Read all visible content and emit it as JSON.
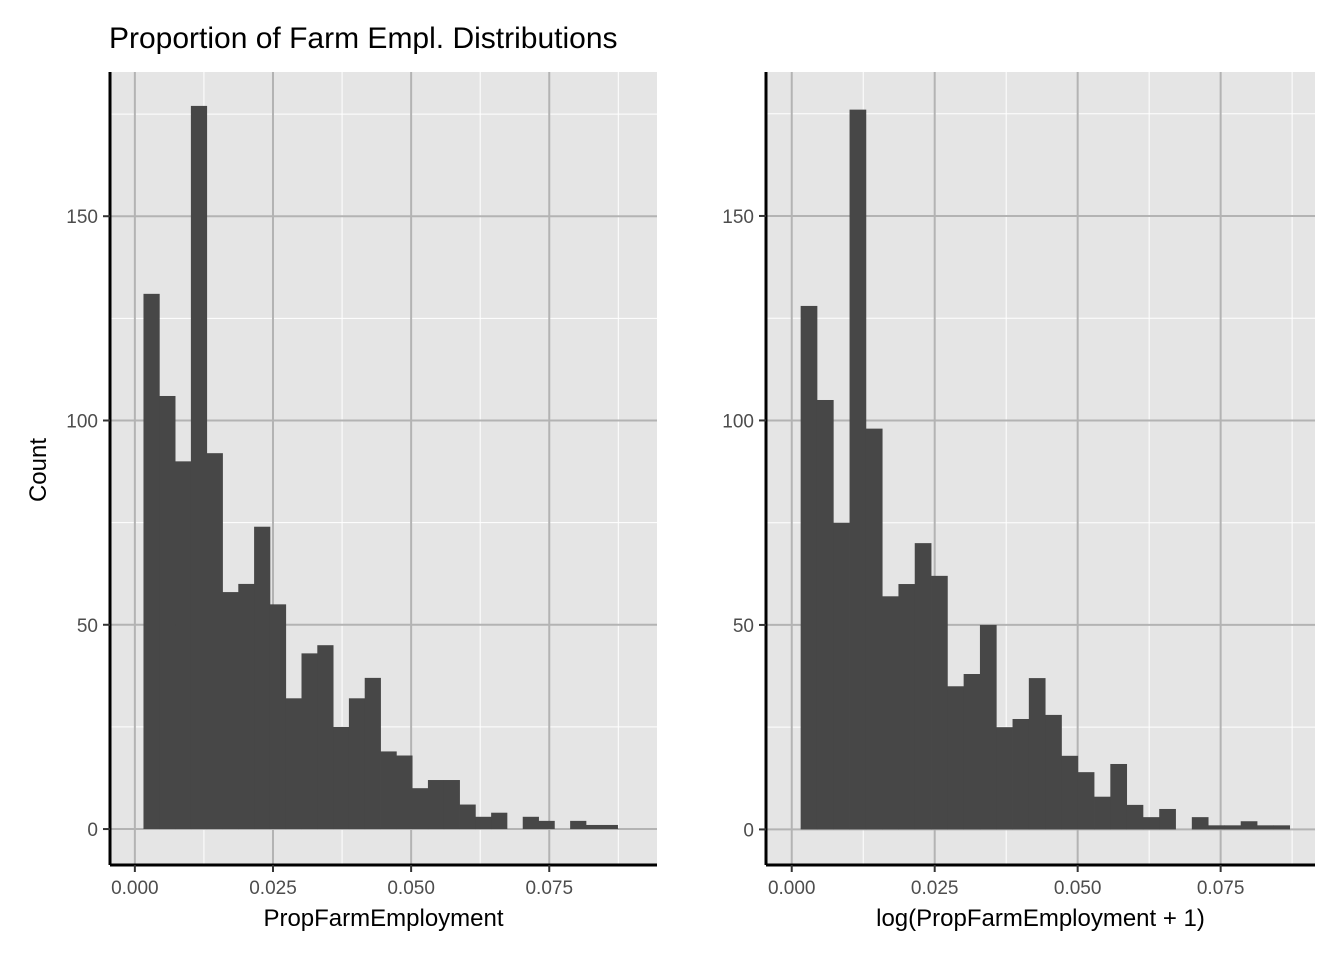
{
  "figure": {
    "title": "Proportion of Farm Empl. Distributions",
    "ylabel": "Count"
  },
  "colors": {
    "panel_background": "#e5e5e5",
    "major_grid": "#b3b3b3",
    "minor_grid": "#ffffff",
    "bar_fill": "#474747",
    "axis_line": "#000000",
    "tick_label": "#4d4d4d"
  },
  "chart_data": [
    {
      "type": "bar",
      "subtype": "histogram",
      "xlabel": "PropFarmEmployment",
      "ylabel": "Count",
      "grid": true,
      "xlim": [
        -0.0045,
        0.0945
      ],
      "ylim": [
        -8.8,
        185.3
      ],
      "xticks": [
        0.0,
        0.025,
        0.05,
        0.075
      ],
      "xtick_labels": [
        "0.000",
        "0.025",
        "0.050",
        "0.075"
      ],
      "yticks": [
        0,
        50,
        100,
        150
      ],
      "ytick_labels": [
        "0",
        "50",
        "100",
        "150"
      ],
      "bin_width": 0.00286,
      "x_start": 0.00156,
      "counts": [
        131,
        106,
        90,
        177,
        92,
        58,
        60,
        74,
        55,
        32,
        43,
        45,
        25,
        32,
        37,
        19,
        18,
        10,
        12,
        12,
        6,
        3,
        4,
        0,
        3,
        2,
        0,
        2,
        1,
        1
      ]
    },
    {
      "type": "bar",
      "subtype": "histogram",
      "xlabel": "log(PropFarmEmployment + 1)",
      "ylabel": "",
      "grid": true,
      "xlim": [
        -0.0045,
        0.0915
      ],
      "ylim": [
        -8.7,
        185.2
      ],
      "xticks": [
        0.0,
        0.025,
        0.05,
        0.075
      ],
      "xtick_labels": [
        "0.000",
        "0.025",
        "0.050",
        "0.075"
      ],
      "yticks": [
        0,
        50,
        100,
        150
      ],
      "ytick_labels": [
        "0",
        "50",
        "100",
        "150"
      ],
      "bin_width": 0.00285,
      "x_start": 0.00156,
      "counts": [
        128,
        105,
        75,
        176,
        98,
        57,
        60,
        70,
        62,
        35,
        38,
        50,
        25,
        27,
        37,
        28,
        18,
        14,
        8,
        16,
        6,
        3,
        5,
        0,
        3,
        1,
        1,
        2,
        1,
        1
      ]
    }
  ]
}
